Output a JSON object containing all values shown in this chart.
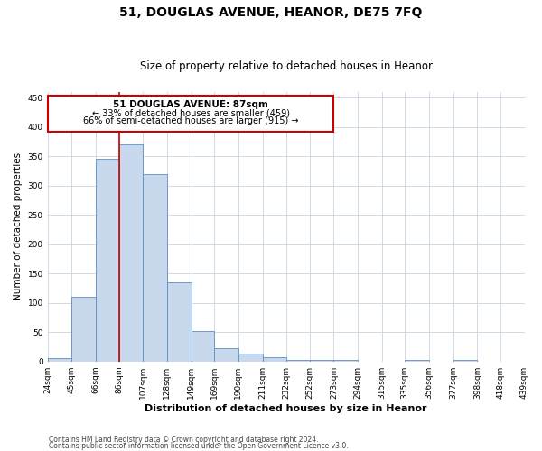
{
  "title": "51, DOUGLAS AVENUE, HEANOR, DE75 7FQ",
  "subtitle": "Size of property relative to detached houses in Heanor",
  "xlabel": "Distribution of detached houses by size in Heanor",
  "ylabel": "Number of detached properties",
  "bar_values": [
    5,
    110,
    345,
    370,
    320,
    135,
    52,
    23,
    14,
    7,
    2,
    2,
    2,
    0,
    0,
    2,
    0,
    2,
    0,
    0
  ],
  "bin_labels": [
    "24sqm",
    "45sqm",
    "66sqm",
    "86sqm",
    "107sqm",
    "128sqm",
    "149sqm",
    "169sqm",
    "190sqm",
    "211sqm",
    "232sqm",
    "252sqm",
    "273sqm",
    "294sqm",
    "315sqm",
    "335sqm",
    "356sqm",
    "377sqm",
    "398sqm",
    "418sqm",
    "439sqm"
  ],
  "bin_edges": [
    24,
    45,
    66,
    86,
    107,
    128,
    149,
    169,
    190,
    211,
    232,
    252,
    273,
    294,
    315,
    335,
    356,
    377,
    398,
    418,
    439
  ],
  "bar_color": "#c9d9ed",
  "bar_edge_color": "#5b8ec4",
  "property_line_x": 86,
  "property_line_color": "#cc0000",
  "ylim": [
    0,
    460
  ],
  "annotation_title": "51 DOUGLAS AVENUE: 87sqm",
  "annotation_line1": "← 33% of detached houses are smaller (459)",
  "annotation_line2": "66% of semi-detached houses are larger (915) →",
  "annotation_box_color": "#cc0000",
  "footer_line1": "Contains HM Land Registry data © Crown copyright and database right 2024.",
  "footer_line2": "Contains public sector information licensed under the Open Government Licence v3.0.",
  "background_color": "#ffffff",
  "grid_color": "#c8d4e3",
  "title_fontsize": 10,
  "subtitle_fontsize": 8.5,
  "xlabel_fontsize": 8,
  "ylabel_fontsize": 7.5,
  "tick_fontsize": 6.5,
  "footer_fontsize": 5.5
}
